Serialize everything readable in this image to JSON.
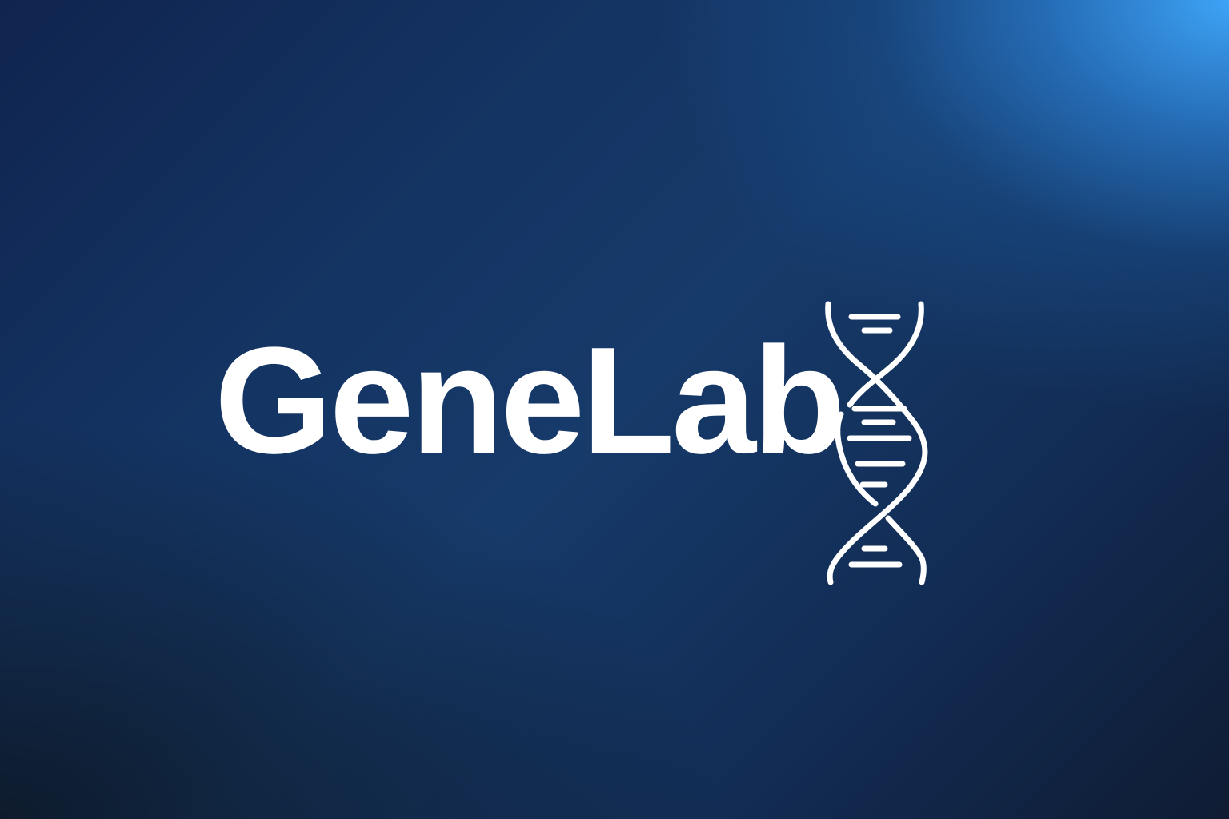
{
  "logo": {
    "wordmark": "GeneLab",
    "icon": "dna-helix-icon"
  },
  "colors": {
    "background_dark": "#10244f",
    "background_light": "#3aa8ff",
    "foreground": "#ffffff"
  }
}
